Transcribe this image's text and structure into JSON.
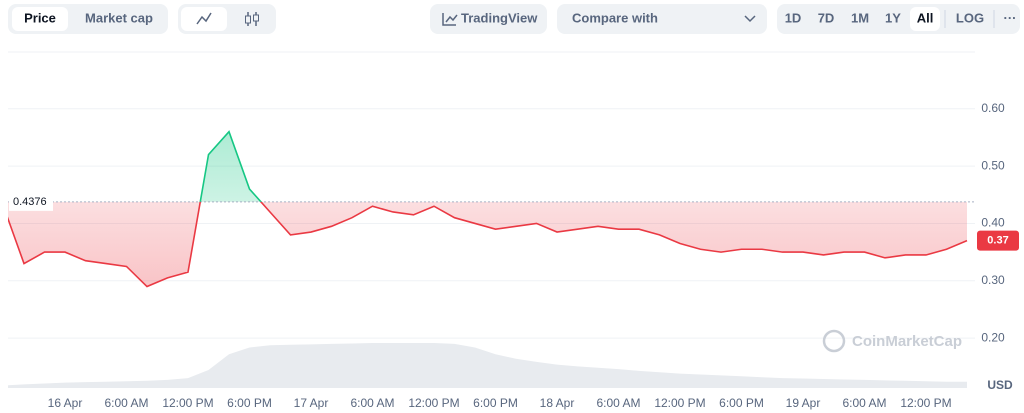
{
  "toolbar": {
    "price": "Price",
    "market_cap": "Market cap",
    "tradingview": "TradingView",
    "compare": "Compare with",
    "ranges": [
      "1D",
      "7D",
      "1M",
      "1Y",
      "All"
    ],
    "log": "LOG",
    "more": "···"
  },
  "watermark": "CoinMarketCap",
  "currency": "USD",
  "chart_data": {
    "type": "line",
    "categories": [
      null,
      null,
      null,
      "16 Apr",
      null,
      null,
      "6:00 AM",
      null,
      null,
      "12:00 PM",
      null,
      null,
      "6:00 PM",
      null,
      null,
      "17 Apr",
      null,
      null,
      "6:00 AM",
      null,
      null,
      "12:00 PM",
      null,
      null,
      "6:00 PM",
      null,
      null,
      "18 Apr",
      null,
      null,
      "6:00 AM",
      null,
      null,
      "12:00 PM",
      null,
      null,
      "6:00 PM",
      null,
      null,
      "19 Apr",
      null,
      null,
      "6:00 AM",
      null,
      null,
      "12:00 PM",
      null,
      null
    ],
    "series": [
      {
        "name": "Price",
        "color_up": "#16c784",
        "color_down": "#ea3943",
        "values": [
          0.43,
          0.33,
          0.35,
          0.35,
          0.335,
          0.33,
          0.325,
          0.29,
          0.305,
          0.315,
          0.52,
          0.56,
          0.46,
          0.42,
          0.38,
          0.385,
          0.395,
          0.41,
          0.43,
          0.42,
          0.415,
          0.43,
          0.41,
          0.4,
          0.39,
          0.395,
          0.4,
          0.385,
          0.39,
          0.395,
          0.39,
          0.39,
          0.38,
          0.365,
          0.355,
          0.35,
          0.355,
          0.355,
          0.35,
          0.35,
          0.345,
          0.35,
          0.35,
          0.34,
          0.345,
          0.345,
          0.355,
          0.37
        ]
      }
    ],
    "volume": [
      6,
      8,
      10,
      12,
      13,
      14,
      15,
      16,
      18,
      22,
      40,
      75,
      90,
      95,
      96,
      97,
      98,
      99,
      100,
      100,
      100,
      100,
      98,
      90,
      75,
      65,
      58,
      52,
      48,
      45,
      42,
      38,
      35,
      32,
      30,
      28,
      26,
      24,
      22,
      21,
      20,
      19,
      18,
      17,
      16,
      15,
      14,
      14
    ],
    "reference": 0.4376,
    "ylim": [
      0.113,
      0.699
    ],
    "yticks": [
      {
        "value": 0.2,
        "label": "0.20"
      },
      {
        "value": 0.3,
        "label": "0.30"
      },
      {
        "value": 0.4,
        "label": "0.40"
      },
      {
        "value": 0.5,
        "label": "0.50"
      },
      {
        "value": 0.6,
        "label": "0.60"
      }
    ],
    "grid": true
  }
}
